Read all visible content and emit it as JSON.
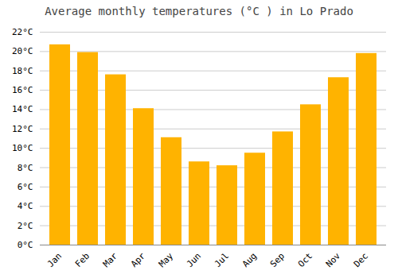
{
  "chart_data": {
    "type": "bar",
    "title": "Average monthly temperatures (°C ) in Lo Prado",
    "categories": [
      "Jan",
      "Feb",
      "Mar",
      "Apr",
      "May",
      "Jun",
      "Jul",
      "Aug",
      "Sep",
      "Oct",
      "Nov",
      "Dec"
    ],
    "values": [
      20.7,
      19.9,
      17.6,
      14.1,
      11.1,
      8.6,
      8.2,
      9.5,
      11.7,
      14.5,
      17.3,
      19.8
    ],
    "color": "#FFB300",
    "ylim": [
      0,
      22
    ],
    "yticks": [
      {
        "value": 0,
        "label": "0°C"
      },
      {
        "value": 2,
        "label": "2°C"
      },
      {
        "value": 4,
        "label": "4°C"
      },
      {
        "value": 6,
        "label": "6°C"
      },
      {
        "value": 8,
        "label": "8°C"
      },
      {
        "value": 10,
        "label": "10°C"
      },
      {
        "value": 12,
        "label": "12°C"
      },
      {
        "value": 14,
        "label": "14°C"
      },
      {
        "value": 16,
        "label": "16°C"
      },
      {
        "value": 18,
        "label": "18°C"
      },
      {
        "value": 20,
        "label": "20°C"
      },
      {
        "value": 22,
        "label": "22°C"
      }
    ],
    "grid": true
  }
}
